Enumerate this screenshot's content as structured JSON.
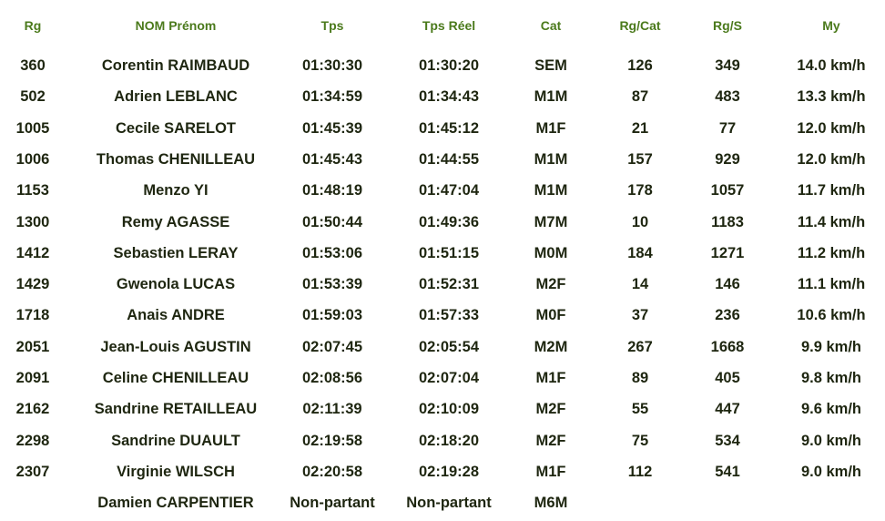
{
  "colors": {
    "header": "#4b7a1c",
    "text": "#1e2610"
  },
  "headers": [
    "Rg",
    "NOM Prénom",
    "Tps",
    "Tps Réel",
    "Cat",
    "Rg/Cat",
    "Rg/S",
    "My"
  ],
  "rows": [
    [
      "360",
      "Corentin RAIMBAUD",
      "01:30:30",
      "01:30:20",
      "SEM",
      "126",
      "349",
      "14.0 km/h"
    ],
    [
      "502",
      "Adrien LEBLANC",
      "01:34:59",
      "01:34:43",
      "M1M",
      "87",
      "483",
      "13.3 km/h"
    ],
    [
      "1005",
      "Cecile SARELOT",
      "01:45:39",
      "01:45:12",
      "M1F",
      "21",
      "77",
      "12.0 km/h"
    ],
    [
      "1006",
      "Thomas CHENILLEAU",
      "01:45:43",
      "01:44:55",
      "M1M",
      "157",
      "929",
      "12.0 km/h"
    ],
    [
      "1153",
      "Menzo YI",
      "01:48:19",
      "01:47:04",
      "M1M",
      "178",
      "1057",
      "11.7 km/h"
    ],
    [
      "1300",
      "Remy AGASSE",
      "01:50:44",
      "01:49:36",
      "M7M",
      "10",
      "1183",
      "11.4 km/h"
    ],
    [
      "1412",
      "Sebastien LERAY",
      "01:53:06",
      "01:51:15",
      "M0M",
      "184",
      "1271",
      "11.2 km/h"
    ],
    [
      "1429",
      "Gwenola LUCAS",
      "01:53:39",
      "01:52:31",
      "M2F",
      "14",
      "146",
      "11.1 km/h"
    ],
    [
      "1718",
      "Anais ANDRE",
      "01:59:03",
      "01:57:33",
      "M0F",
      "37",
      "236",
      "10.6 km/h"
    ],
    [
      "2051",
      "Jean-Louis AGUSTIN",
      "02:07:45",
      "02:05:54",
      "M2M",
      "267",
      "1668",
      "9.9 km/h"
    ],
    [
      "2091",
      "Celine CHENILLEAU",
      "02:08:56",
      "02:07:04",
      "M1F",
      "89",
      "405",
      "9.8 km/h"
    ],
    [
      "2162",
      "Sandrine RETAILLEAU",
      "02:11:39",
      "02:10:09",
      "M2F",
      "55",
      "447",
      "9.6 km/h"
    ],
    [
      "2298",
      "Sandrine DUAULT",
      "02:19:58",
      "02:18:20",
      "M2F",
      "75",
      "534",
      "9.0 km/h"
    ],
    [
      "2307",
      "Virginie WILSCH",
      "02:20:58",
      "02:19:28",
      "M1F",
      "112",
      "541",
      "9.0 km/h"
    ],
    [
      "",
      "Damien CARPENTIER",
      "Non-partant",
      "Non-partant",
      "M6M",
      "",
      "",
      ""
    ]
  ]
}
